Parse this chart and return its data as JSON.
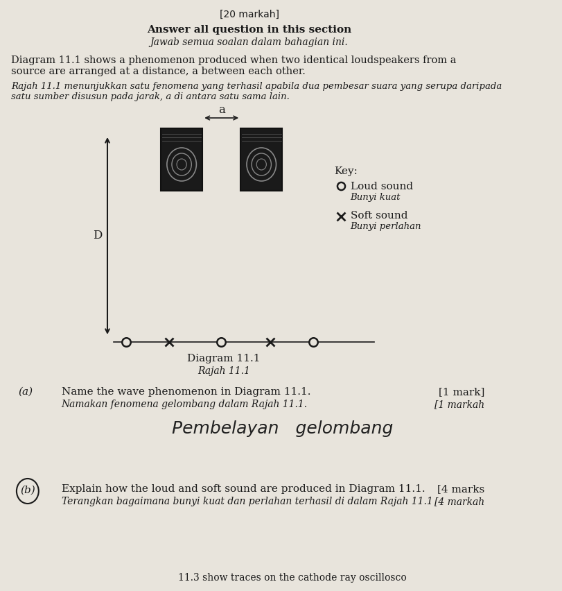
{
  "bg_color": "#e8e4dc",
  "text_color": "#1a1a1a",
  "title_top": "[20 markah]",
  "section_header_en": "Answer all question in this section",
  "section_header_ms": "Jawab semua soalan dalam bahagian ini.",
  "diagram_intro_en": "Diagram 11.1 shows a phenomenon produced when two identical loudspeakers from a\nsource are arranged at a distance, a between each other.",
  "diagram_intro_ms": "Rajah 11.1 menunjukkan satu fenomena yang terhasil apabila dua pembesar suara yang serupa daripada\nsatu sumber disusun pada jarak, a di antara satu sama lain.",
  "label_a": "a",
  "label_D": "D",
  "key_title": "Key:",
  "loud_sound_en": "Loud sound",
  "loud_sound_ms": "Bunyi kuat",
  "soft_sound_en": "Soft sound",
  "soft_sound_ms": "Bunyi perlahan",
  "diagram_label_en": "Diagram 11.1",
  "diagram_label_ms": "Rajah 11.1",
  "qa_label": "(a)",
  "qa_text_en": "Name the wave phenomenon in Diagram 11.1.",
  "qa_text_ms": "Namakan fenomena gelombang dalam Rajah 11.1.",
  "qa_mark_en": "[1 mark]",
  "qa_mark_ms": "[1 markah",
  "handwritten_answer": "Pembelayan   gelombang",
  "qb_label": "(b)",
  "qb_text_en": "Explain how the loud and soft sound are produced in Diagram 11.1.",
  "qb_text_ms": "Terangkan bagaimana bunyi kuat dan perlahan terhasil di dalam Rajah 11.1",
  "qb_mark_en": "[4 marks",
  "qb_mark_ms": "[4 markah",
  "bottom_text": "show traces on the cathode ray oscillosco",
  "bottom_prefix": "11.3"
}
